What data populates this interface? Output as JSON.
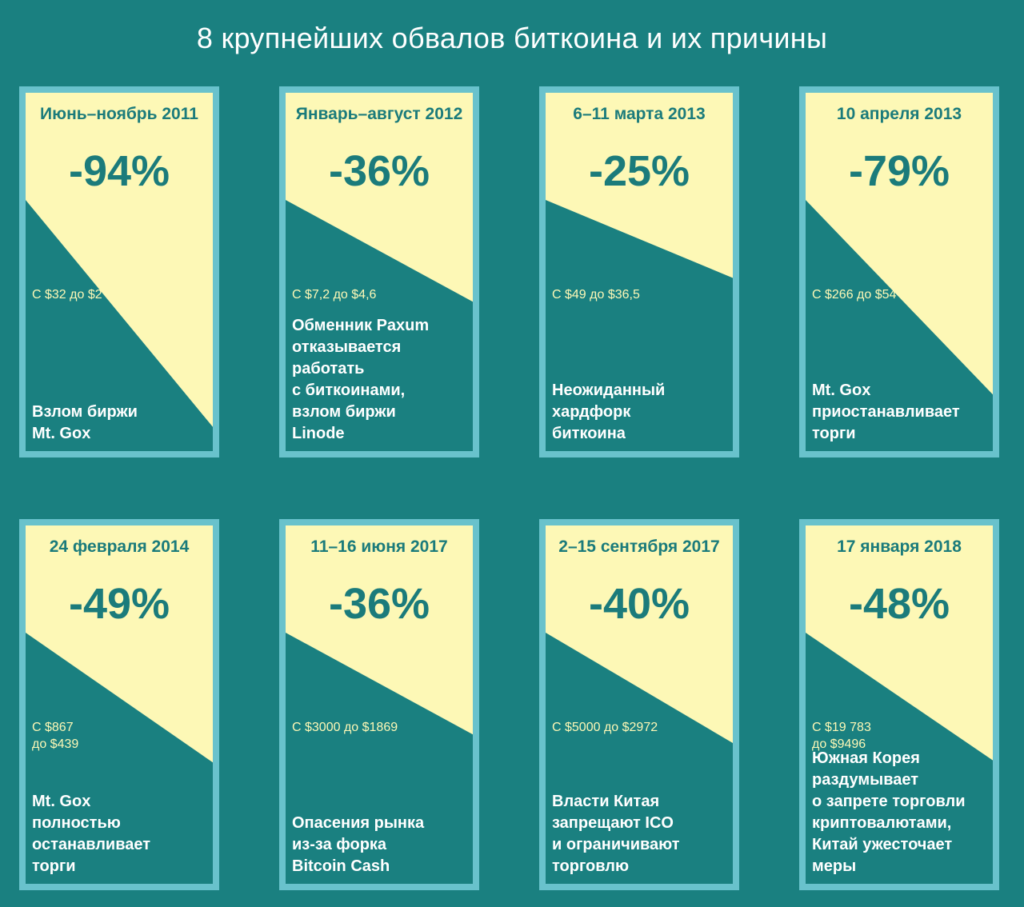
{
  "title": "8 крупнейших обвалов биткоина и их причины",
  "colors": {
    "background": "#1a8080",
    "card_border": "#69c2cc",
    "card_upper": "#fdf8b6",
    "card_lower": "#1a8080",
    "accent_text": "#1b7b7b"
  },
  "chart_data": {
    "type": "table",
    "title": "8 крупнейших обвалов биткоина и их причины",
    "crashes": [
      {
        "period": "Июнь–ноябрь 2011",
        "drop_label": "-94%",
        "drop": -94,
        "range": "С $32 до $2",
        "cause": "Взлом биржи\nMt. Gox"
      },
      {
        "period": "Январь–август 2012",
        "drop_label": "-36%",
        "drop": -36,
        "range": "С $7,2 до $4,6",
        "cause": "Обменник Paxum\nотказывается\nработать\nс биткоинами,\nвзлом биржи\nLinode"
      },
      {
        "period": "6–11 марта 2013",
        "drop_label": "-25%",
        "drop": -25,
        "range": "С $49 до $36,5",
        "cause": "Неожиданный\nхардфорк\nбиткоина"
      },
      {
        "period": "10 апреля 2013",
        "drop_label": "-79%",
        "drop": -79,
        "range": "С $266 до $54",
        "cause": "Mt. Gox\nприостанавливает\nторги"
      },
      {
        "period": "24 февраля 2014",
        "drop_label": "-49%",
        "drop": -49,
        "range": "С $867\nдо $439",
        "cause": "Mt. Gox\nполностью\nостанавливает\nторги"
      },
      {
        "period": "11–16 июня 2017",
        "drop_label": "-36%",
        "drop": -36,
        "range": "С $3000 до $1869",
        "cause": "Опасения рынка\nиз-за форка\nBitcoin Cash"
      },
      {
        "period": "2–15 сентября 2017",
        "drop_label": "-40%",
        "drop": -40,
        "range": "С $5000 до $2972",
        "cause": "Власти Китая\nзапрещают ICO\nи ограничивают\nторговлю"
      },
      {
        "period": "17 января 2018",
        "drop_label": "-48%",
        "drop": -48,
        "range": "С $19 783\nдо $9496",
        "cause": "Южная Корея\nраздумывает\nо запрете торговли\nкриптовалютами,\nКитай ужесточает\nмеры"
      }
    ]
  }
}
